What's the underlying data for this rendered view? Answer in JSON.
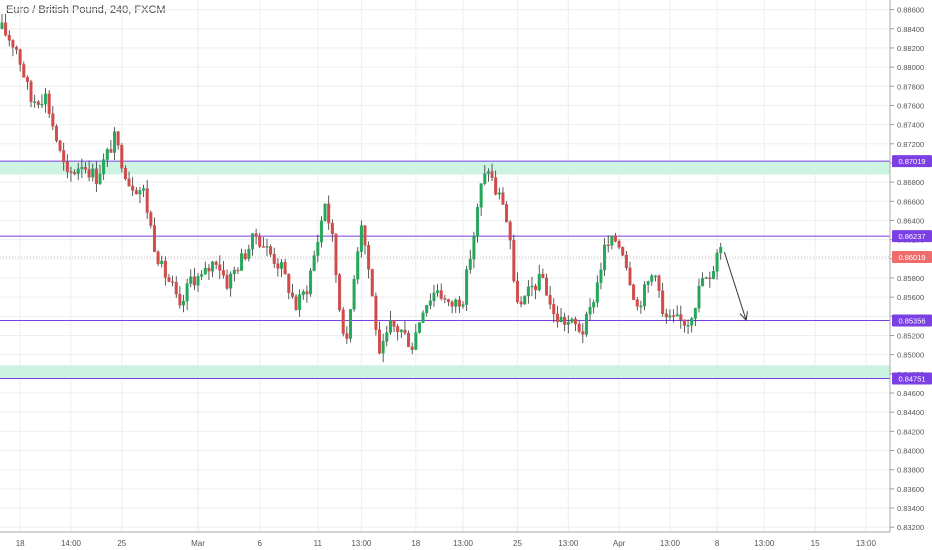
{
  "header": {
    "title": "Euro / British Pound, 240, FXCM"
  },
  "colors": {
    "up": "#26a65b",
    "down": "#d24b4b",
    "level_line": "#7b3fe4",
    "zone_fill": "#cdf3e3",
    "current_price": "#f06b6b",
    "arrow": "#333333",
    "grid": "#eeeeee",
    "axis_text": "#555555"
  },
  "chart_data": {
    "type": "candlestick",
    "symbol": "EUR/GBP",
    "title": "Euro / British Pound, 240, FXCM",
    "ylim": [
      0.8315,
      0.887
    ],
    "y_ticks": [
      "0.88600",
      "0.88400",
      "0.88200",
      "0.88000",
      "0.87800",
      "0.87600",
      "0.87400",
      "0.87200",
      "0.87000",
      "0.86800",
      "0.86600",
      "0.86400",
      "0.86200",
      "0.86000",
      "0.85800",
      "0.85600",
      "0.85400",
      "0.85200",
      "0.85000",
      "0.84800",
      "0.84600",
      "0.84400",
      "0.84200",
      "0.84000",
      "0.83800",
      "0.83600",
      "0.83400",
      "0.83200"
    ],
    "x_ticks": [
      {
        "label": "18",
        "i": 5
      },
      {
        "label": "14:00",
        "i": 19
      },
      {
        "label": "25",
        "i": 33
      },
      {
        "label": "Mar",
        "i": 54
      },
      {
        "label": "6",
        "i": 71
      },
      {
        "label": "11",
        "i": 87
      },
      {
        "label": "13:00",
        "i": 99
      },
      {
        "label": "18",
        "i": 114
      },
      {
        "label": "13:00",
        "i": 127
      },
      {
        "label": "25",
        "i": 142
      },
      {
        "label": "13:00",
        "i": 156
      },
      {
        "label": "Apr",
        "i": 170
      },
      {
        "label": "13:00",
        "i": 184
      },
      {
        "label": "8",
        "i": 197
      },
      {
        "label": "13:00",
        "i": 210
      },
      {
        "label": "15",
        "i": 224
      },
      {
        "label": "13:00",
        "i": 238
      }
    ],
    "horizontal_levels": [
      {
        "price": 0.87019,
        "label": "0.87019"
      },
      {
        "price": 0.86237,
        "label": "0.86237"
      },
      {
        "price": 0.85356,
        "label": "0.85356"
      },
      {
        "price": 0.84751,
        "label": "0.84751"
      }
    ],
    "zones": [
      {
        "from": 0.8688,
        "to": 0.87019
      },
      {
        "from": 0.84751,
        "to": 0.8489
      }
    ],
    "current_price": {
      "price": 0.86019,
      "label": "0.86019"
    },
    "arrow": {
      "from_i": 199,
      "from_price": 0.8607,
      "to_i": 205,
      "to_price": 0.8536
    },
    "candle_anchors": [
      [
        0,
        0.884
      ],
      [
        4,
        0.882
      ],
      [
        8,
        0.8765
      ],
      [
        12,
        0.877
      ],
      [
        16,
        0.871
      ],
      [
        18,
        0.8685
      ],
      [
        22,
        0.87
      ],
      [
        26,
        0.8685
      ],
      [
        31,
        0.8725
      ],
      [
        35,
        0.868
      ],
      [
        39,
        0.867
      ],
      [
        42,
        0.8615
      ],
      [
        44,
        0.859
      ],
      [
        47,
        0.857
      ],
      [
        49,
        0.8545
      ],
      [
        52,
        0.858
      ],
      [
        55,
        0.858
      ],
      [
        59,
        0.86
      ],
      [
        62,
        0.8575
      ],
      [
        66,
        0.86
      ],
      [
        70,
        0.8625
      ],
      [
        74,
        0.8605
      ],
      [
        77,
        0.859
      ],
      [
        81,
        0.855
      ],
      [
        84,
        0.857
      ],
      [
        87,
        0.862
      ],
      [
        89,
        0.866
      ],
      [
        91,
        0.862
      ],
      [
        93,
        0.855
      ],
      [
        95,
        0.851
      ],
      [
        97,
        0.8585
      ],
      [
        99,
        0.864
      ],
      [
        101,
        0.859
      ],
      [
        103,
        0.853
      ],
      [
        104,
        0.8495
      ],
      [
        107,
        0.853
      ],
      [
        110,
        0.8525
      ],
      [
        113,
        0.851
      ],
      [
        116,
        0.855
      ],
      [
        120,
        0.857
      ],
      [
        123,
        0.855
      ],
      [
        127,
        0.856
      ],
      [
        130,
        0.8625
      ],
      [
        132,
        0.8675
      ],
      [
        134,
        0.8695
      ],
      [
        136,
        0.867
      ],
      [
        138,
        0.866
      ],
      [
        140,
        0.862
      ],
      [
        141,
        0.857
      ],
      [
        143,
        0.855
      ],
      [
        146,
        0.857
      ],
      [
        149,
        0.858
      ],
      [
        152,
        0.854
      ],
      [
        155,
        0.8535
      ],
      [
        158,
        0.853
      ],
      [
        160,
        0.8525
      ],
      [
        162,
        0.8545
      ],
      [
        164,
        0.8575
      ],
      [
        166,
        0.861
      ],
      [
        169,
        0.862
      ],
      [
        171,
        0.861
      ],
      [
        173,
        0.858
      ],
      [
        175,
        0.855
      ],
      [
        178,
        0.8575
      ],
      [
        180,
        0.859
      ],
      [
        182,
        0.854
      ],
      [
        184,
        0.8535
      ],
      [
        187,
        0.8535
      ],
      [
        189,
        0.8535
      ],
      [
        191,
        0.8555
      ],
      [
        193,
        0.858
      ],
      [
        195,
        0.8575
      ],
      [
        197,
        0.861
      ],
      [
        198,
        0.8612
      ]
    ]
  }
}
